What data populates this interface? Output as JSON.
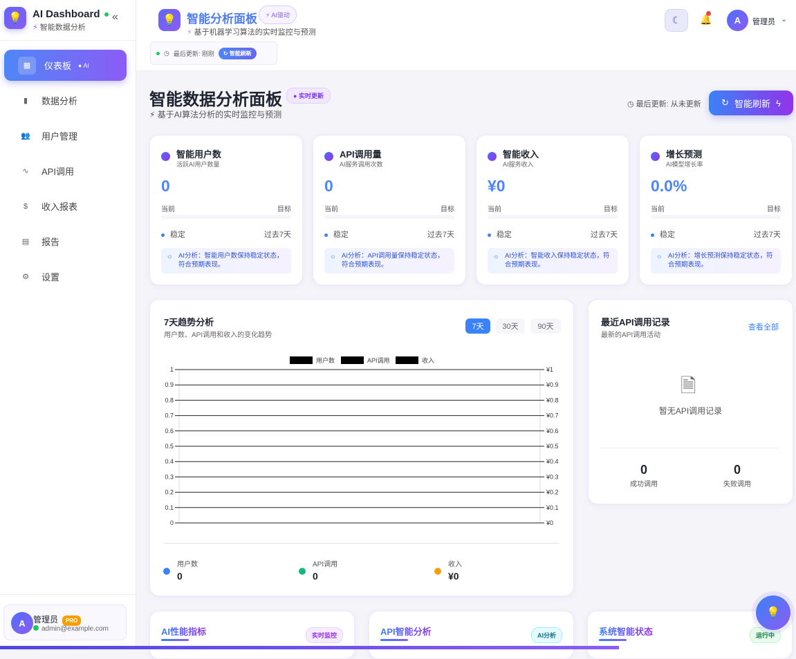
{
  "sidebar": {
    "brand": "AI Dashboard",
    "brand_sub": "智能数据分析",
    "items": [
      {
        "label": "仪表板",
        "icon": "grid-icon",
        "badge": "AI",
        "active": true
      },
      {
        "label": "数据分析",
        "icon": "bar-chart-icon"
      },
      {
        "label": "用户管理",
        "icon": "users-icon"
      },
      {
        "label": "API调用",
        "icon": "activity-icon"
      },
      {
        "label": "收入报表",
        "icon": "dollar-icon"
      },
      {
        "label": "报告",
        "icon": "file-icon"
      },
      {
        "label": "设置",
        "icon": "gear-icon"
      }
    ],
    "user": {
      "name": "管理员",
      "badge": "PRO",
      "email": "admin@example.com",
      "initial": "A"
    }
  },
  "header": {
    "title": "智能分析面板",
    "badge": "AI驱动",
    "subtitle": "基于机器学习算法的实时监控与预测",
    "last_update": "最后更新: 刚刚",
    "refresh": "智能刷新",
    "user": "管理员",
    "initial": "A"
  },
  "page": {
    "title": "智能数据分析面板",
    "badge": "实时更新",
    "subtitle": "基于AI算法分析的实时监控与预测",
    "last_update": "最后更新: 从未更新",
    "refresh": "智能刷新"
  },
  "stats": [
    {
      "title": "智能用户数",
      "sub": "活跃AI用户数量",
      "value": "0",
      "current": "当前",
      "target": "目标",
      "progress": 0,
      "trend": "稳定",
      "period": "过去7天",
      "ai": "AI分析：智能用户数保持稳定状态，符合预期表现。"
    },
    {
      "title": "API调用量",
      "sub": "AI服务调用次数",
      "value": "0",
      "current": "当前",
      "target": "目标",
      "progress": 0,
      "trend": "稳定",
      "period": "过去7天",
      "ai": "AI分析：API调用量保持稳定状态，符合预期表现。"
    },
    {
      "title": "智能收入",
      "sub": "AI服务收入",
      "value": "¥0",
      "current": "当前",
      "target": "目标",
      "progress": 0,
      "trend": "稳定",
      "period": "过去7天",
      "ai": "AI分析：智能收入保持稳定状态，符合预期表现。"
    },
    {
      "title": "增长预测",
      "sub": "AI模型增长率",
      "value": "0.0%",
      "current": "当前",
      "target": "目标",
      "progress": 0,
      "trend": "稳定",
      "period": "过去7天",
      "ai": "AI分析：增长预测保持稳定状态，符合预期表现。"
    }
  ],
  "trend": {
    "title": "7天趋势分析",
    "subtitle": "用户数、API调用和收入的变化趋势",
    "ranges": [
      "7天",
      "30天",
      "90天"
    ],
    "active_range": "7天",
    "summary": [
      {
        "label": "用户数",
        "value": "0",
        "color": "#3b82f6"
      },
      {
        "label": "API调用",
        "value": "0",
        "color": "#10b981"
      },
      {
        "label": "收入",
        "value": "¥0",
        "color": "#f59e0b"
      }
    ]
  },
  "chart_data": {
    "type": "line",
    "series": [
      {
        "name": "用户数",
        "values": []
      },
      {
        "name": "API调用",
        "values": []
      },
      {
        "name": "收入",
        "values": []
      }
    ],
    "ylim": [
      0,
      1
    ],
    "y_ticks": [
      "0",
      "0.1",
      "0.2",
      "0.3",
      "0.4",
      "0.5",
      "0.6",
      "0.7",
      "0.8",
      "0.9",
      "1"
    ],
    "y2_ticks": [
      "¥0",
      "¥0.1",
      "¥0.2",
      "¥0.3",
      "¥0.4",
      "¥0.5",
      "¥0.6",
      "¥0.7",
      "¥0.8",
      "¥0.9",
      "¥1"
    ],
    "grid": true,
    "legend": "top"
  },
  "api": {
    "title": "最近API调用记录",
    "subtitle": "最新的API调用活动",
    "view_all": "查看全部",
    "empty": "暂无API调用记录",
    "success": "0",
    "success_label": "成功调用",
    "fail": "0",
    "fail_label": "失败调用"
  },
  "bottom": [
    {
      "title": "AI性能指标",
      "badge": "实时监控"
    },
    {
      "title": "API智能分析",
      "badge": "AI分析"
    },
    {
      "title": "系统智能状态",
      "badge": "运行中"
    }
  ],
  "page_progress": 78
}
